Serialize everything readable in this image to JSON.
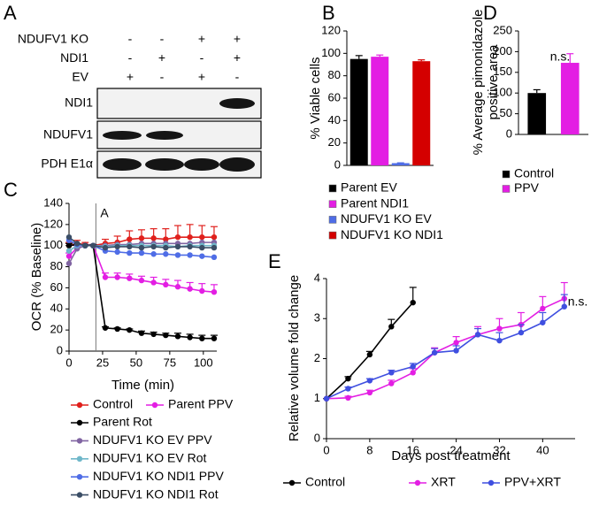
{
  "panels": [
    "A",
    "B",
    "C",
    "D",
    "E"
  ],
  "blot": {
    "conditions": [
      {
        "name": "NDUFV1 KO",
        "marks": [
          "-",
          "-",
          "+",
          "+"
        ]
      },
      {
        "name": "NDI1",
        "marks": [
          "-",
          "+",
          "-",
          "+"
        ]
      },
      {
        "name": "EV",
        "marks": [
          "+",
          "-",
          "+",
          "-"
        ]
      }
    ],
    "bands": [
      "NDI1",
      "NDUFV1",
      "PDH E1α"
    ]
  },
  "chart_data": [
    {
      "type": "bar",
      "ylabel": [
        "% Viable cells"
      ],
      "ylim": [
        0,
        120
      ],
      "yticks": [
        0,
        20,
        40,
        60,
        80,
        100,
        120
      ],
      "series": [
        {
          "name": "Parent EV",
          "color": "#000000",
          "values": [
            95
          ],
          "errors": [
            3
          ]
        },
        {
          "name": "Parent NDI1",
          "color": "#e31ee3",
          "values": [
            97
          ],
          "errors": [
            1.5
          ]
        },
        {
          "name": "NDUFV1 KO EV",
          "color": "#4f6de6",
          "values": [
            2
          ],
          "errors": [
            0.3
          ]
        },
        {
          "name": "NDUFV1 KO NDI1",
          "color": "#d40000",
          "values": [
            93
          ],
          "errors": [
            1.2
          ]
        }
      ]
    },
    {
      "type": "line",
      "xlabel": "Time (min)",
      "ylabel": [
        "OCR (% Baseline)"
      ],
      "xlim": [
        0,
        110
      ],
      "xticks": [
        0,
        25,
        50,
        75,
        100
      ],
      "ylim": [
        0,
        140
      ],
      "yticks": [
        0,
        20,
        40,
        60,
        80,
        100,
        120,
        140
      ],
      "vline": {
        "x": 20,
        "label": "A"
      },
      "x": [
        0,
        6,
        12,
        18,
        27,
        36,
        45,
        54,
        63,
        72,
        81,
        90,
        99,
        108
      ],
      "series": [
        {
          "name": "Control",
          "color": "#e0201c",
          "values": [
            100,
            102,
            101,
            100,
            102,
            103,
            106,
            107,
            107,
            106,
            108,
            108,
            108,
            108
          ],
          "errors": [
            3,
            3,
            2,
            1,
            4,
            6,
            8,
            8,
            9,
            10,
            11,
            12,
            11,
            10
          ]
        },
        {
          "name": "Parent PPV",
          "color": "#e31ee3",
          "values": [
            90,
            98,
            100,
            100,
            70,
            70,
            69,
            67,
            65,
            63,
            61,
            59,
            57,
            56
          ],
          "errors": [
            3,
            2,
            1,
            1,
            4,
            4,
            4,
            4,
            5,
            5,
            6,
            6,
            7,
            7
          ]
        },
        {
          "name": "Parent Rot",
          "color": "#000000",
          "values": [
            100,
            101,
            100,
            100,
            22,
            21,
            20,
            17,
            16,
            15,
            14,
            13,
            12,
            12
          ],
          "errors": [
            2,
            1,
            1,
            1,
            1,
            1,
            1,
            2,
            2,
            2,
            3,
            3,
            3,
            3
          ]
        },
        {
          "name": "NDUFV1 KO EV PPV",
          "color": "#8064a2",
          "values": [
            83,
            97,
            100,
            100,
            100,
            101,
            101,
            102,
            102,
            102,
            102,
            102,
            103,
            103
          ]
        },
        {
          "name": "NDUFV1 KO EV Rot",
          "color": "#6fb7c9",
          "values": [
            95,
            100,
            100,
            100,
            99,
            100,
            100,
            100,
            100,
            100,
            99,
            100,
            100,
            100
          ]
        },
        {
          "name": "NDUFV1 KO NDI1 PPV",
          "color": "#4f6de6",
          "values": [
            105,
            101,
            100,
            100,
            95,
            94,
            93,
            93,
            92,
            92,
            91,
            91,
            90,
            89
          ]
        },
        {
          "name": "NDUFV1 KO NDI1 Rot",
          "color": "#3b4e66",
          "values": [
            108,
            102,
            100,
            100,
            98,
            99,
            99,
            98,
            99,
            98,
            99,
            99,
            98,
            98
          ]
        }
      ]
    },
    {
      "type": "bar",
      "ylabel": [
        "% Average pimonidazole",
        "positive area"
      ],
      "ylim": [
        0,
        250
      ],
      "yticks": [
        0,
        50,
        100,
        150,
        200,
        250
      ],
      "annotation": "n.s.",
      "series": [
        {
          "name": "Control",
          "color": "#000000",
          "values": [
            100
          ],
          "errors": [
            8
          ]
        },
        {
          "name": "PPV",
          "color": "#e31ee3",
          "values": [
            173
          ],
          "errors": [
            22
          ]
        }
      ]
    },
    {
      "type": "line",
      "xlabel": "Days post treatment",
      "ylabel": [
        "Relative volume fold change"
      ],
      "xlim": [
        0,
        46
      ],
      "xticks": [
        0,
        8,
        16,
        24,
        32,
        40
      ],
      "ylim": [
        0,
        4
      ],
      "yticks": [
        0,
        1,
        2,
        3,
        4
      ],
      "annotation": "n.s.",
      "series": [
        {
          "name": "Control",
          "color": "#000000",
          "x": [
            0,
            4,
            8,
            12,
            16
          ],
          "values": [
            1,
            1.5,
            2.1,
            2.8,
            3.4
          ],
          "errors": [
            0,
            0.05,
            0.08,
            0.18,
            0.38
          ]
        },
        {
          "name": "XRT",
          "color": "#e31ee3",
          "x": [
            0,
            4,
            8,
            12,
            16,
            20,
            24,
            28,
            32,
            36,
            40,
            44
          ],
          "values": [
            1,
            1.02,
            1.15,
            1.38,
            1.65,
            2.15,
            2.4,
            2.6,
            2.75,
            2.85,
            3.25,
            3.5
          ],
          "errors": [
            0,
            0.04,
            0.06,
            0.08,
            0.1,
            0.12,
            0.15,
            0.2,
            0.25,
            0.3,
            0.3,
            0.4
          ]
        },
        {
          "name": "PPV+XRT",
          "color": "#3f4fe0",
          "x": [
            0,
            4,
            8,
            12,
            16,
            20,
            24,
            28,
            32,
            36,
            40,
            44
          ],
          "values": [
            1,
            1.25,
            1.45,
            1.65,
            1.8,
            2.15,
            2.2,
            2.6,
            2.45,
            2.65,
            2.9,
            3.3
          ],
          "errors": [
            0,
            0.04,
            0.05,
            0.06,
            0.08,
            0.1,
            0.12,
            0.15,
            0.2,
            0.2,
            0.25,
            0.3
          ]
        }
      ]
    }
  ]
}
